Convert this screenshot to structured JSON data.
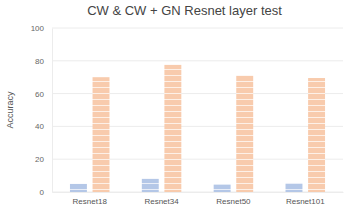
{
  "chart_data": {
    "type": "bar",
    "title": "CW & CW + GN Resnet layer test",
    "y_label": "Accuracy",
    "categories": [
      "Resnet18",
      "Resnet34",
      "Resnet50",
      "Resnet101"
    ],
    "series": [
      {
        "color": "#b4c7e7",
        "values": [
          5,
          8,
          4.5,
          5.5
        ]
      },
      {
        "color": "#f8cbad",
        "values": [
          70,
          77.5,
          71,
          69.5
        ]
      }
    ],
    "ylim": [
      0,
      100
    ],
    "yticks": [
      0,
      20,
      40,
      60,
      80,
      100
    ],
    "grid": true
  }
}
